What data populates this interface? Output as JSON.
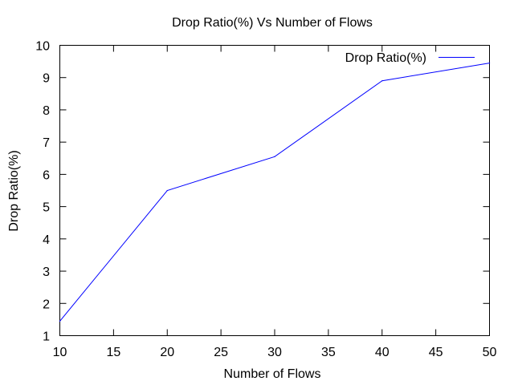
{
  "chart_data": {
    "type": "line",
    "title": "Drop Ratio(%)  Vs Number of Flows",
    "xlabel": "Number of Flows",
    "ylabel": "Drop Ratio(%)",
    "xlim": [
      10,
      50
    ],
    "ylim": [
      1,
      10
    ],
    "xticks": [
      10,
      15,
      20,
      25,
      30,
      35,
      40,
      45,
      50
    ],
    "yticks": [
      1,
      2,
      3,
      4,
      5,
      6,
      7,
      8,
      9,
      10
    ],
    "grid": false,
    "legend_position": "top-right",
    "series": [
      {
        "name": "Drop Ratio(%)",
        "color": "#0000ff",
        "x": [
          10,
          20,
          30,
          40,
          50
        ],
        "y": [
          1.45,
          5.5,
          6.55,
          8.9,
          9.45
        ]
      }
    ]
  }
}
